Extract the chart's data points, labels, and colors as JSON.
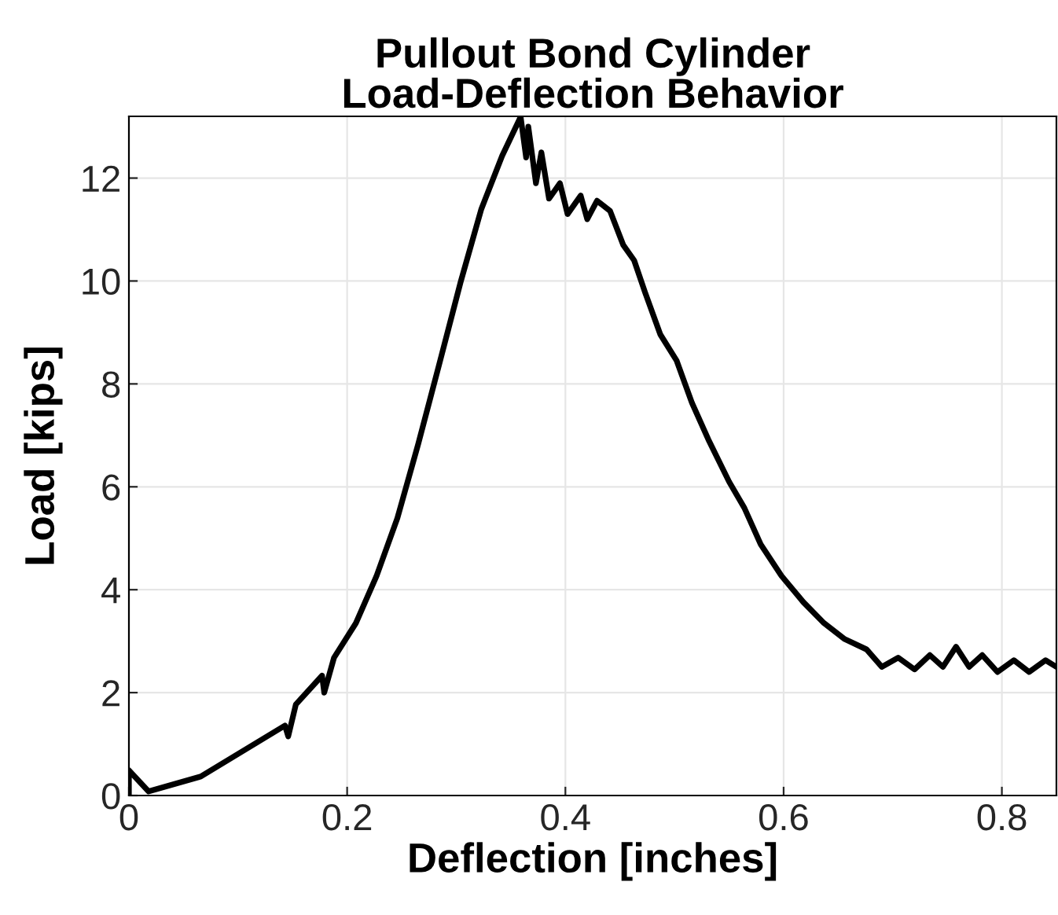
{
  "chart_data": {
    "type": "line",
    "title": "Pullout Bond Cylinder\nLoad-Deflection Behavior",
    "xlabel": "Deflection [inches]",
    "ylabel": "Load [kips]",
    "series": [
      {
        "color": "#000000",
        "x": [
          0,
          0,
          0.018,
          0.066,
          0.143,
          0.146,
          0.153,
          0.177,
          0.179,
          0.188,
          0.208,
          0.227,
          0.246,
          0.265,
          0.284,
          0.304,
          0.323,
          0.342,
          0.359,
          0.364,
          0.366,
          0.373,
          0.378,
          0.385,
          0.395,
          0.402,
          0.414,
          0.42,
          0.429,
          0.441,
          0.453,
          0.463,
          0.473,
          0.487,
          0.502,
          0.516,
          0.531,
          0.55,
          0.564,
          0.579,
          0.598,
          0.618,
          0.637,
          0.656,
          0.676,
          0.69,
          0.705,
          0.72,
          0.734,
          0.746,
          0.758,
          0.77,
          0.782,
          0.796,
          0.811,
          0.825,
          0.84,
          0.85
        ],
        "values": [
          0,
          0.49,
          0.08,
          0.37,
          1.36,
          1.15,
          1.77,
          2.33,
          2.0,
          2.68,
          3.35,
          4.27,
          5.39,
          6.82,
          8.35,
          9.98,
          11.4,
          12.43,
          13.19,
          12.4,
          13.0,
          11.9,
          12.5,
          11.6,
          11.9,
          11.3,
          11.66,
          11.2,
          11.56,
          11.36,
          10.7,
          10.4,
          9.78,
          8.96,
          8.45,
          7.63,
          6.92,
          6.1,
          5.59,
          4.88,
          4.27,
          3.76,
          3.35,
          3.04,
          2.84,
          2.5,
          2.68,
          2.45,
          2.73,
          2.5,
          2.89,
          2.5,
          2.73,
          2.4,
          2.63,
          2.4,
          2.63,
          2.5
        ]
      }
    ],
    "xlim": [
      0,
      0.85
    ],
    "ylim": [
      0,
      13.2
    ],
    "xticks": [
      0,
      0.2,
      0.4,
      0.6,
      0.8
    ],
    "yticks": [
      0,
      2,
      4,
      6,
      8,
      10,
      12
    ],
    "grid": true,
    "line_style": "solid",
    "marker": "none"
  }
}
